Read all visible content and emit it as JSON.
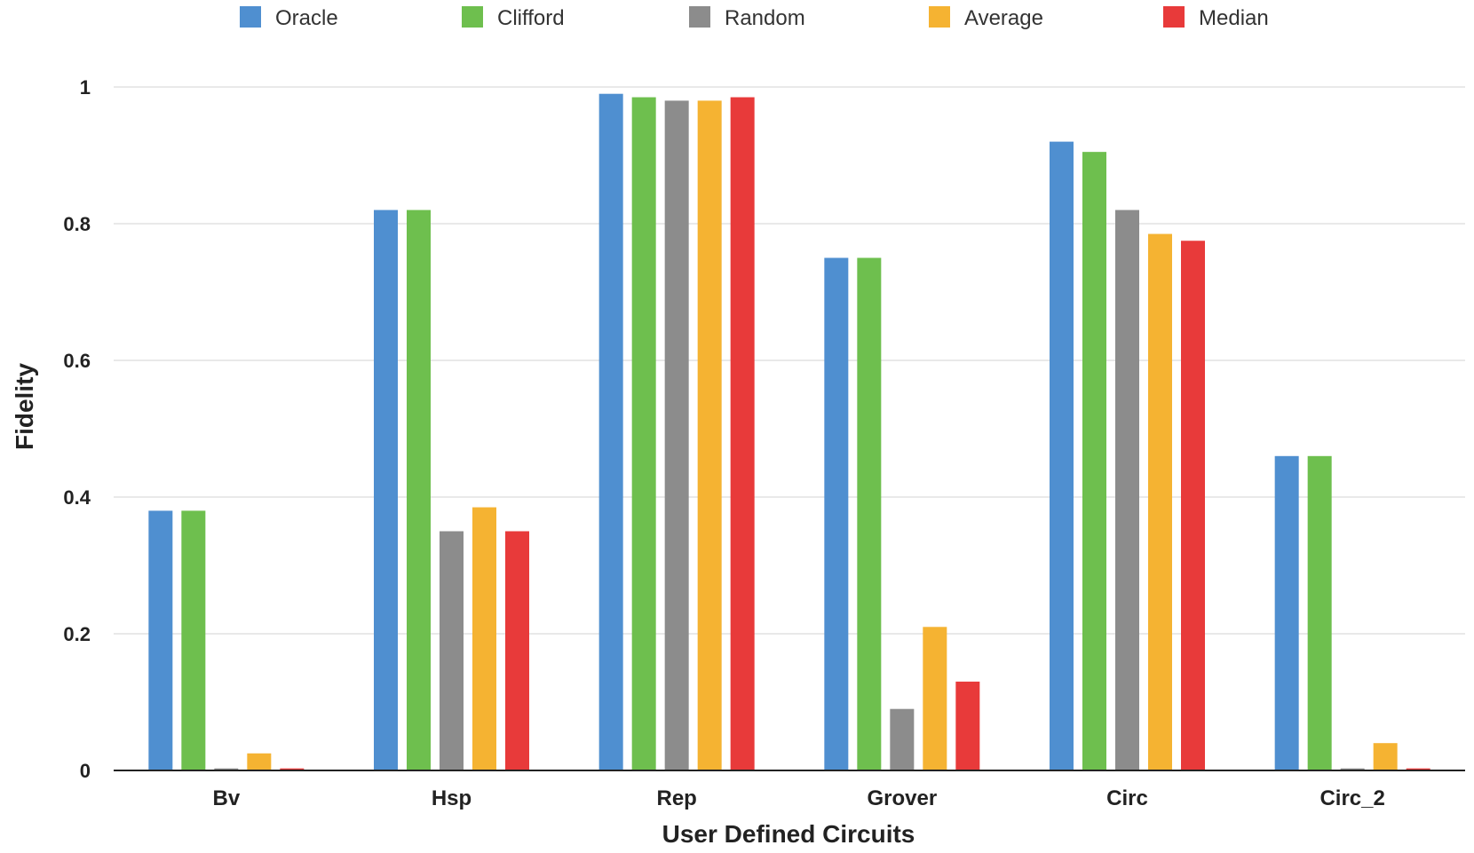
{
  "chart_data": {
    "type": "bar",
    "title": "",
    "xlabel": "User Defined Circuits",
    "ylabel": "Fidelity",
    "ylim": [
      0,
      1
    ],
    "yticks": [
      0,
      0.2,
      0.4,
      0.6,
      0.8,
      1
    ],
    "ytick_labels": [
      "0",
      "0.2",
      "0.4",
      "0.6",
      "0.8",
      "1"
    ],
    "grid": true,
    "legend_position": "top",
    "categories": [
      "Bv",
      "Hsp",
      "Rep",
      "Grover",
      "Circ",
      "Circ_2"
    ],
    "series": [
      {
        "name": "Oracle",
        "color": "#4f8fd0",
        "values": [
          0.38,
          0.82,
          0.99,
          0.75,
          0.92,
          0.46
        ]
      },
      {
        "name": "Clifford",
        "color": "#6ebf4e",
        "values": [
          0.38,
          0.82,
          0.985,
          0.75,
          0.905,
          0.46
        ]
      },
      {
        "name": "Random",
        "color": "#8c8c8c",
        "values": [
          0.003,
          0.35,
          0.98,
          0.09,
          0.82,
          0.003
        ]
      },
      {
        "name": "Average",
        "color": "#f5b332",
        "values": [
          0.025,
          0.385,
          0.98,
          0.21,
          0.785,
          0.04
        ]
      },
      {
        "name": "Median",
        "color": "#e83a3a",
        "values": [
          0.003,
          0.35,
          0.985,
          0.13,
          0.775,
          0.003
        ]
      }
    ]
  }
}
